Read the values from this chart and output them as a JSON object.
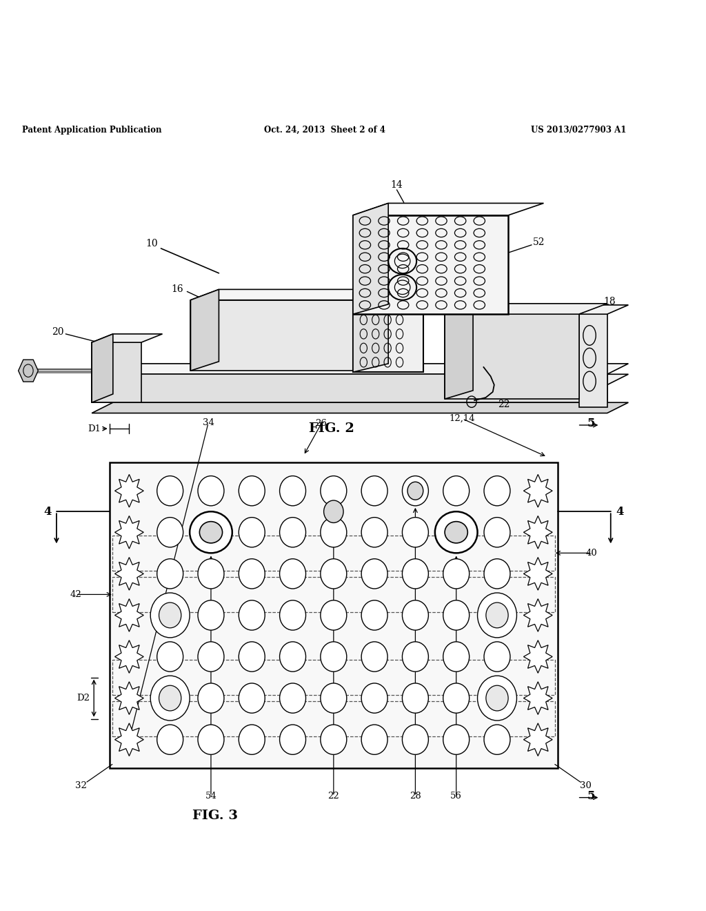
{
  "bg_color": "#ffffff",
  "header_left": "Patent Application Publication",
  "header_center": "Oct. 24, 2013  Sheet 2 of 4",
  "header_right": "US 2013/0277903 A1",
  "fig2_label": "FIG. 2",
  "fig3_label": "FIG. 3",
  "line_color": "#000000"
}
